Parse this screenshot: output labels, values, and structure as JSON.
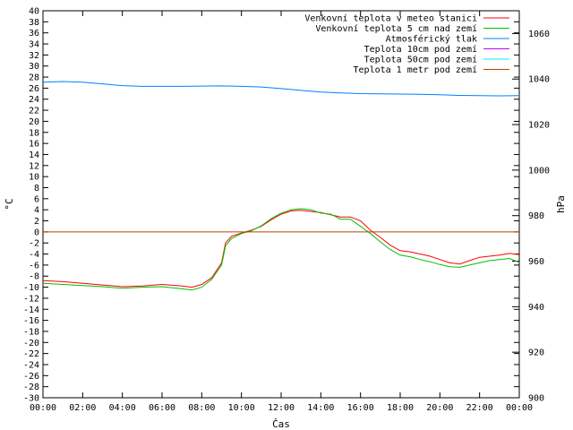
{
  "chart_data": {
    "type": "line",
    "xlabel": "Čas",
    "ylabel": "°C",
    "y2label": "hPa",
    "xlim": [
      0,
      24
    ],
    "ylim": [
      -30,
      40
    ],
    "y2lim": [
      900,
      1070
    ],
    "x_ticks": [
      {
        "value": 0,
        "label": "00:00"
      },
      {
        "value": 2,
        "label": "02:00"
      },
      {
        "value": 4,
        "label": "04:00"
      },
      {
        "value": 6,
        "label": "06:00"
      },
      {
        "value": 8,
        "label": "08:00"
      },
      {
        "value": 10,
        "label": "10:00"
      },
      {
        "value": 12,
        "label": "12:00"
      },
      {
        "value": 14,
        "label": "14:00"
      },
      {
        "value": 16,
        "label": "16:00"
      },
      {
        "value": 18,
        "label": "18:00"
      },
      {
        "value": 20,
        "label": "20:00"
      },
      {
        "value": 22,
        "label": "22:00"
      },
      {
        "value": 24,
        "label": "00:00"
      }
    ],
    "y_ticks": [
      40,
      38,
      36,
      34,
      32,
      30,
      28,
      26,
      24,
      22,
      20,
      18,
      16,
      14,
      12,
      10,
      8,
      6,
      4,
      2,
      0,
      -2,
      -4,
      -6,
      -8,
      -10,
      -12,
      -14,
      -16,
      -18,
      -20,
      -22,
      -24,
      -26,
      -28,
      -30
    ],
    "y2_ticks": [
      1060,
      1040,
      1020,
      1000,
      980,
      960,
      940,
      920,
      900
    ],
    "grid": false,
    "legend_position": "top-right",
    "colors": {
      "red": "#ff0000",
      "green": "#00c000",
      "blue": "#0080ff",
      "purple": "#c000ff",
      "cyan": "#00eeee",
      "orange": "#c04000"
    },
    "series": [
      {
        "name": "Venkovní teplota v meteo stanici",
        "color": "#ff0000",
        "axis": "left",
        "x": [
          0,
          1,
          2,
          3,
          4,
          5,
          6,
          7,
          7.5,
          8,
          8.5,
          9,
          9.2,
          9.5,
          10,
          10.5,
          11,
          11.5,
          12,
          12.5,
          13,
          13.5,
          14,
          14.5,
          15,
          15.5,
          16,
          16.5,
          17,
          17.5,
          18,
          18.5,
          19,
          19.5,
          20,
          20.5,
          21,
          21.5,
          22,
          22.5,
          23,
          23.5,
          24
        ],
        "y": [
          -8.8,
          -9.0,
          -9.3,
          -9.6,
          -9.9,
          -9.8,
          -9.5,
          -9.8,
          -10.0,
          -9.5,
          -8.3,
          -5.6,
          -2.0,
          -0.8,
          -0.2,
          0.3,
          1.0,
          2.2,
          3.2,
          3.8,
          3.9,
          3.7,
          3.5,
          3.1,
          2.7,
          2.7,
          2.0,
          0.3,
          -1.0,
          -2.4,
          -3.4,
          -3.6,
          -4.0,
          -4.4,
          -5.0,
          -5.6,
          -5.8,
          -5.2,
          -4.6,
          -4.4,
          -4.2,
          -3.9,
          -4.1
        ]
      },
      {
        "name": "Venkovní teplota 5 cm nad zemí",
        "color": "#00c000",
        "axis": "left",
        "x": [
          0,
          1,
          2,
          3,
          4,
          5,
          6,
          7,
          7.5,
          8,
          8.5,
          9,
          9.2,
          9.5,
          10,
          10.5,
          11,
          11.5,
          12,
          12.5,
          13,
          13.5,
          14,
          14.5,
          15,
          15.5,
          16,
          16.5,
          17,
          17.5,
          18,
          18.5,
          19,
          19.5,
          20,
          20.5,
          21,
          21.5,
          22,
          22.5,
          23,
          23.5,
          24
        ],
        "y": [
          -9.3,
          -9.5,
          -9.7,
          -9.9,
          -10.2,
          -10.0,
          -9.9,
          -10.3,
          -10.5,
          -10.0,
          -8.6,
          -6.0,
          -2.5,
          -1.2,
          -0.3,
          0.2,
          1.1,
          2.4,
          3.4,
          4.0,
          4.2,
          4.0,
          3.4,
          3.2,
          2.3,
          2.3,
          1.0,
          -0.3,
          -1.8,
          -3.2,
          -4.2,
          -4.5,
          -5.0,
          -5.4,
          -5.9,
          -6.3,
          -6.4,
          -6.0,
          -5.6,
          -5.2,
          -5.0,
          -4.8,
          -5.5
        ]
      },
      {
        "name": "Atmosférický tlak",
        "color": "#0080ff",
        "axis": "right",
        "x": [
          0,
          1,
          2,
          3,
          4,
          5,
          6,
          7,
          8,
          9,
          10,
          11,
          12,
          13,
          14,
          15,
          16,
          17,
          18,
          19,
          20,
          21,
          22,
          23,
          24
        ],
        "y": [
          1038.6,
          1038.9,
          1038.6,
          1037.9,
          1037.1,
          1036.8,
          1036.8,
          1036.8,
          1036.9,
          1037.0,
          1036.8,
          1036.5,
          1035.8,
          1035.0,
          1034.3,
          1033.9,
          1033.6,
          1033.5,
          1033.4,
          1033.3,
          1033.1,
          1032.8,
          1032.7,
          1032.6,
          1032.7
        ]
      },
      {
        "name": "Teplota 10cm pod zemí",
        "color": "#c000ff",
        "axis": "left",
        "x": [],
        "y": []
      },
      {
        "name": "Teplota 50cm pod zemí",
        "color": "#00eeee",
        "axis": "left",
        "x": [],
        "y": []
      },
      {
        "name": "Teplota 1 metr pod zemí",
        "color": "#c04000",
        "axis": "left",
        "x": [
          0,
          24
        ],
        "y": [
          0,
          0
        ]
      }
    ]
  }
}
